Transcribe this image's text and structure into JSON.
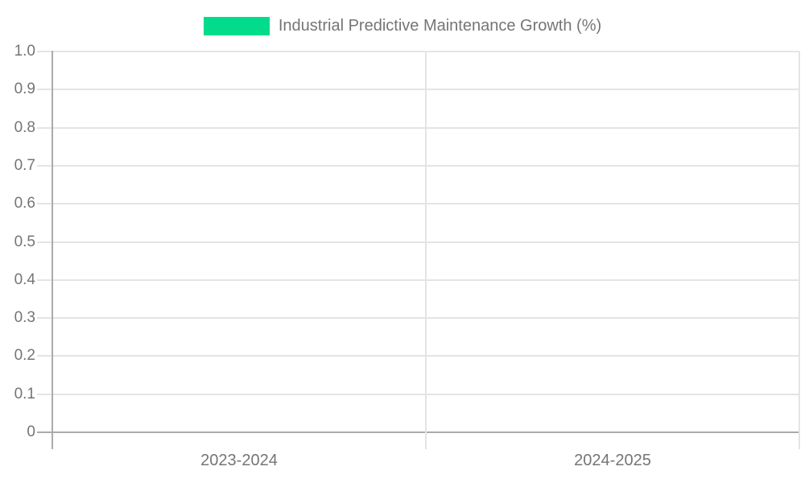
{
  "legend": {
    "label": "Industrial Predictive Maintenance Growth (%)"
  },
  "chart_data": {
    "type": "bar",
    "title": "Industrial Predictive Maintenance Growth (%)",
    "categories": [
      "2023-2024",
      "2024-2025"
    ],
    "series": [
      {
        "name": "Industrial Predictive Maintenance Growth (%)",
        "color": "#00dc8c",
        "values": []
      }
    ],
    "xlabel": "",
    "ylabel": "",
    "ylim": [
      0,
      1.0
    ],
    "yticks": [
      0,
      0.1,
      0.2,
      0.3,
      0.4,
      0.5,
      0.6,
      0.7,
      0.8,
      0.9,
      1.0
    ],
    "ytick_labels": [
      "0",
      "0.1",
      "0.2",
      "0.3",
      "0.4",
      "0.5",
      "0.6",
      "0.7",
      "0.8",
      "0.9",
      "1.0"
    ],
    "grid": true,
    "legend_position": "top-center",
    "plot_is_empty": true
  },
  "colors": {
    "accent": "#00dc8c",
    "text": "#757575",
    "gridline": "#e4e4e4",
    "axis": "#ababab",
    "background": "#ffffff"
  }
}
